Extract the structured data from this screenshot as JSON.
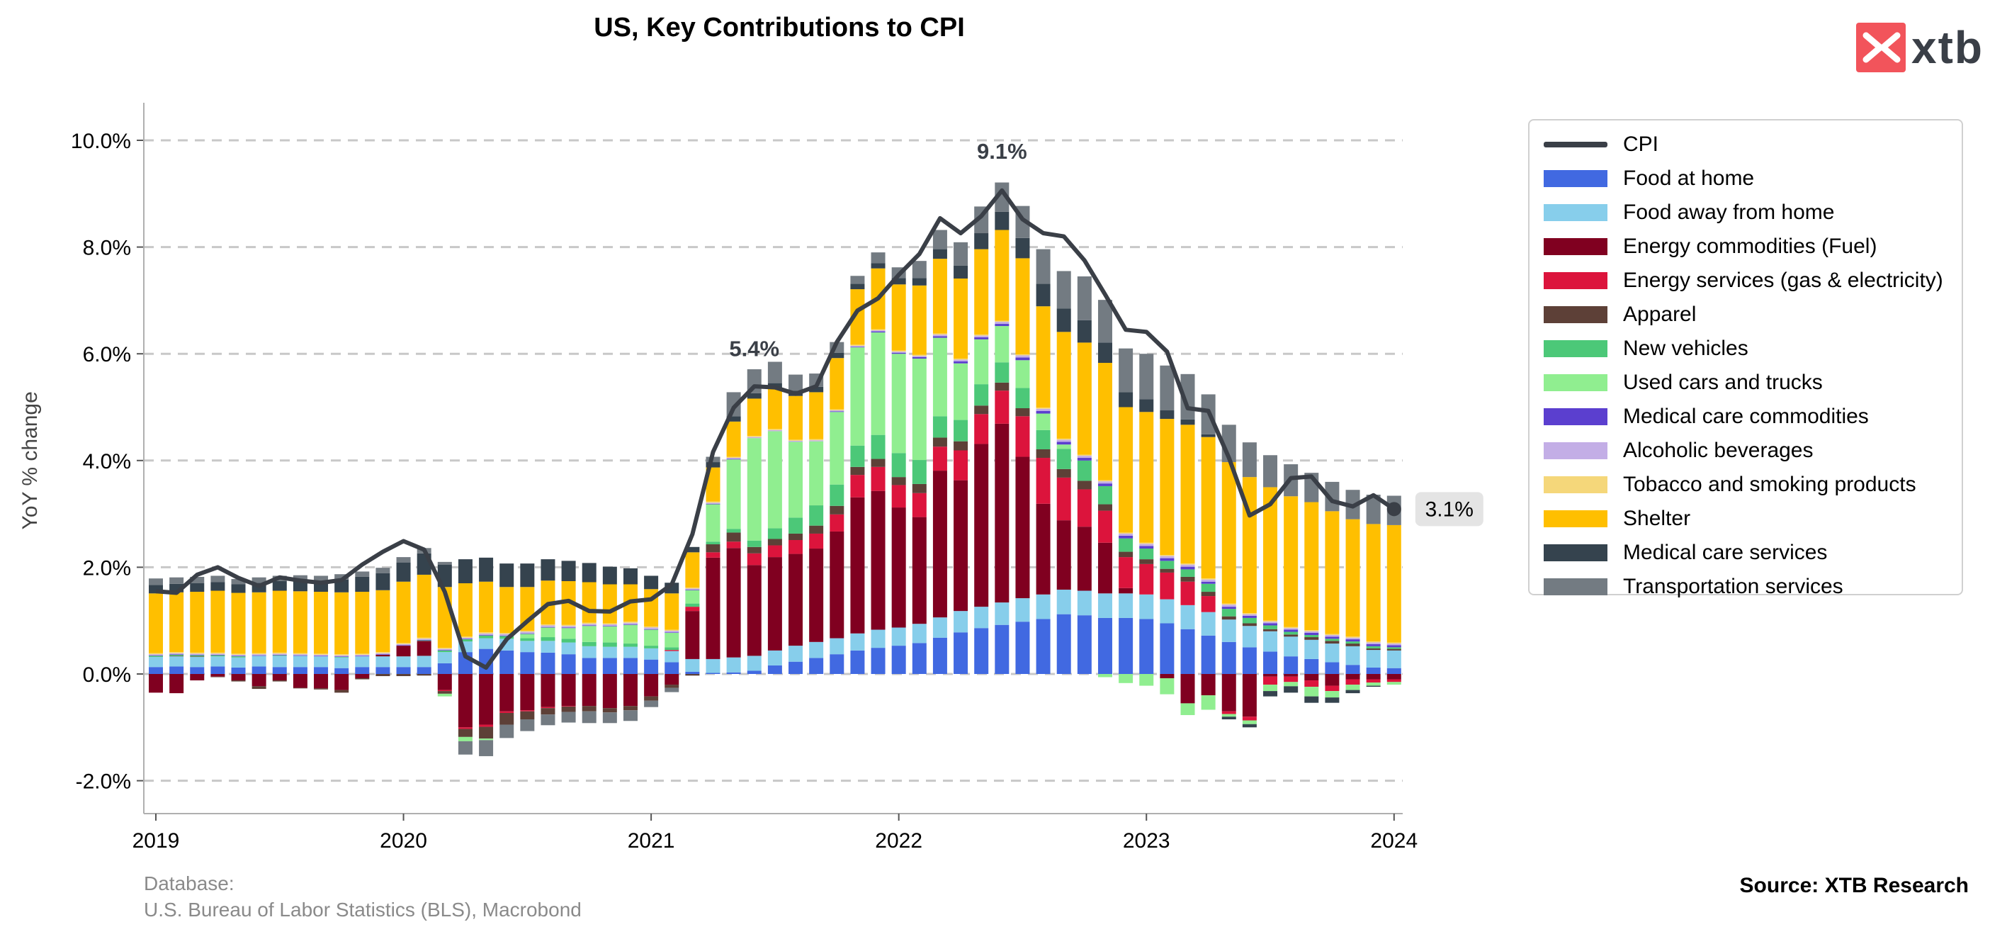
{
  "header": {
    "title": "US, Key Contributions to CPI"
  },
  "brand": {
    "name": "xtb",
    "accent": "#f2545b"
  },
  "footer": {
    "database_label": "Database:",
    "database_value": "U.S. Bureau of Labor Statistics (BLS), Macrobond",
    "source": "Source: XTB Research"
  },
  "chart_data": {
    "type": "bar",
    "stacked": true,
    "ylabel": "YoY % change",
    "ylim": [
      -2.6,
      10.8
    ],
    "yticks": [
      "-2.0%",
      "0.0%",
      "2.0%",
      "4.0%",
      "6.0%",
      "8.0%",
      "10.0%"
    ],
    "ytick_values": [
      -2,
      0,
      2,
      4,
      6,
      8,
      10
    ],
    "xticks": [
      "2019",
      "2020",
      "2021",
      "2022",
      "2023",
      "2024"
    ],
    "xtick_values": [
      0,
      12,
      24,
      36,
      48,
      60
    ],
    "grid": "horizontal dashed",
    "legend_position": "right",
    "annotations": [
      {
        "text": "5.4%",
        "x": 29,
        "y": 5.4
      },
      {
        "text": "9.1%",
        "x": 41,
        "y": 9.1
      }
    ],
    "end_label": "3.1%",
    "series": [
      {
        "name": "CPI",
        "kind": "line",
        "color": "#3a3f47",
        "values": [
          1.55,
          1.52,
          1.86,
          2.0,
          1.8,
          1.65,
          1.81,
          1.75,
          1.71,
          1.76,
          2.05,
          2.29,
          2.49,
          2.33,
          1.54,
          0.33,
          0.12,
          0.65,
          0.99,
          1.31,
          1.37,
          1.18,
          1.17,
          1.36,
          1.4,
          1.68,
          2.62,
          4.16,
          4.99,
          5.39,
          5.37,
          5.25,
          5.39,
          6.22,
          6.81,
          7.04,
          7.48,
          7.87,
          8.54,
          8.26,
          8.58,
          9.06,
          8.52,
          8.26,
          8.2,
          7.75,
          7.11,
          6.45,
          6.41,
          6.04,
          4.98,
          4.93,
          4.05,
          2.97,
          3.18,
          3.67,
          3.7,
          3.24,
          3.14,
          3.35,
          3.09
        ]
      },
      {
        "name": "Food at home",
        "kind": "bar",
        "color": "#4169e1",
        "values": [
          0.13,
          0.14,
          0.13,
          0.14,
          0.12,
          0.14,
          0.13,
          0.13,
          0.13,
          0.11,
          0.13,
          0.13,
          0.13,
          0.13,
          0.2,
          0.41,
          0.47,
          0.44,
          0.41,
          0.4,
          0.37,
          0.3,
          0.3,
          0.3,
          0.27,
          0.22,
          0.04,
          0.02,
          0.03,
          0.06,
          0.16,
          0.23,
          0.3,
          0.37,
          0.44,
          0.49,
          0.53,
          0.58,
          0.68,
          0.78,
          0.86,
          0.92,
          0.98,
          1.03,
          1.12,
          1.1,
          1.05,
          1.05,
          1.03,
          0.95,
          0.84,
          0.72,
          0.6,
          0.5,
          0.42,
          0.33,
          0.28,
          0.22,
          0.17,
          0.12,
          0.11
        ]
      },
      {
        "name": "Food away from home",
        "kind": "bar",
        "color": "#87ceeb",
        "values": [
          0.19,
          0.19,
          0.19,
          0.19,
          0.19,
          0.2,
          0.21,
          0.21,
          0.2,
          0.2,
          0.2,
          0.2,
          0.2,
          0.21,
          0.21,
          0.2,
          0.2,
          0.22,
          0.21,
          0.22,
          0.22,
          0.22,
          0.21,
          0.21,
          0.21,
          0.21,
          0.24,
          0.26,
          0.28,
          0.28,
          0.28,
          0.3,
          0.3,
          0.3,
          0.32,
          0.34,
          0.34,
          0.36,
          0.38,
          0.4,
          0.4,
          0.42,
          0.44,
          0.46,
          0.46,
          0.46,
          0.46,
          0.46,
          0.46,
          0.45,
          0.45,
          0.44,
          0.42,
          0.4,
          0.38,
          0.37,
          0.36,
          0.35,
          0.35,
          0.33,
          0.33
        ]
      },
      {
        "name": "Energy commodities (Fuel)",
        "kind": "bar",
        "color": "#800020",
        "values": [
          -0.35,
          -0.36,
          -0.12,
          -0.05,
          -0.12,
          -0.23,
          -0.12,
          -0.26,
          -0.27,
          -0.3,
          -0.08,
          0.03,
          0.2,
          0.28,
          -0.3,
          -1.0,
          -0.95,
          -0.7,
          -0.68,
          -0.62,
          -0.6,
          -0.6,
          -0.64,
          -0.6,
          -0.42,
          -0.2,
          0.9,
          1.9,
          2.05,
          1.7,
          1.75,
          1.72,
          1.75,
          2.0,
          2.55,
          2.6,
          2.25,
          2.0,
          2.75,
          2.45,
          3.05,
          3.35,
          2.65,
          1.7,
          1.3,
          1.2,
          0.95,
          0.1,
          0.0,
          -0.08,
          -0.55,
          -0.4,
          -0.7,
          -0.8,
          -0.05,
          -0.05,
          -0.12,
          -0.22,
          -0.1,
          -0.1,
          -0.1
        ]
      },
      {
        "name": "Energy services (gas & electricity)",
        "kind": "bar",
        "color": "#dc143c",
        "values": [
          0.0,
          0.0,
          0.0,
          0.0,
          0.0,
          0.0,
          0.0,
          0.0,
          0.0,
          0.0,
          0.0,
          0.0,
          0.0,
          0.0,
          -0.02,
          -0.03,
          -0.04,
          -0.03,
          -0.02,
          -0.02,
          -0.01,
          0.0,
          0.0,
          0.0,
          0.0,
          0.02,
          0.08,
          0.1,
          0.12,
          0.22,
          0.22,
          0.26,
          0.28,
          0.32,
          0.42,
          0.45,
          0.42,
          0.45,
          0.45,
          0.56,
          0.56,
          0.62,
          0.76,
          0.86,
          0.8,
          0.7,
          0.6,
          0.58,
          0.57,
          0.5,
          0.44,
          0.3,
          -0.05,
          -0.07,
          -0.15,
          -0.1,
          -0.12,
          -0.1,
          -0.1,
          -0.06,
          -0.05
        ]
      },
      {
        "name": "Apparel",
        "kind": "bar",
        "color": "#5d4037",
        "values": [
          0.0,
          0.01,
          0.01,
          -0.01,
          -0.02,
          -0.05,
          -0.02,
          -0.01,
          -0.02,
          -0.05,
          -0.02,
          -0.04,
          -0.04,
          -0.03,
          -0.05,
          -0.15,
          -0.22,
          -0.22,
          -0.15,
          -0.12,
          -0.1,
          -0.1,
          -0.08,
          -0.08,
          -0.08,
          -0.06,
          -0.03,
          0.15,
          0.17,
          0.12,
          0.12,
          0.12,
          0.15,
          0.16,
          0.15,
          0.15,
          0.15,
          0.17,
          0.17,
          0.17,
          0.16,
          0.15,
          0.15,
          0.16,
          0.16,
          0.16,
          0.12,
          0.1,
          0.09,
          0.07,
          0.09,
          0.08,
          0.06,
          0.05,
          0.04,
          0.04,
          0.05,
          0.05,
          0.05,
          0.03,
          0.03
        ]
      },
      {
        "name": "New vehicles",
        "kind": "bar",
        "color": "#4cc878",
        "values": [
          0.02,
          0.02,
          0.02,
          0.02,
          0.02,
          0.0,
          0.01,
          0.0,
          0.0,
          0.01,
          0.0,
          0.0,
          0.0,
          0.01,
          0.03,
          0.04,
          0.05,
          0.05,
          0.05,
          0.07,
          0.07,
          0.08,
          0.08,
          0.06,
          0.05,
          0.05,
          0.06,
          0.05,
          0.07,
          0.12,
          0.2,
          0.3,
          0.38,
          0.4,
          0.4,
          0.45,
          0.45,
          0.45,
          0.4,
          0.4,
          0.4,
          0.38,
          0.38,
          0.36,
          0.38,
          0.38,
          0.34,
          0.25,
          0.2,
          0.15,
          0.14,
          0.15,
          0.14,
          0.1,
          0.07,
          0.05,
          0.04,
          0.04,
          0.04,
          0.04,
          0.03
        ]
      },
      {
        "name": "Used cars and trucks",
        "kind": "bar",
        "color": "#90ee90",
        "values": [
          0.0,
          0.0,
          0.0,
          0.0,
          0.0,
          0.0,
          0.0,
          0.0,
          0.0,
          0.0,
          0.0,
          0.0,
          0.0,
          0.0,
          -0.05,
          -0.08,
          -0.03,
          0.0,
          0.08,
          0.18,
          0.2,
          0.3,
          0.3,
          0.35,
          0.3,
          0.27,
          0.25,
          0.7,
          1.3,
          1.92,
          1.82,
          1.42,
          1.2,
          1.36,
          1.84,
          1.92,
          1.86,
          1.9,
          1.47,
          1.06,
          0.84,
          0.68,
          0.52,
          0.31,
          0.08,
          0.0,
          -0.06,
          -0.17,
          -0.22,
          -0.3,
          -0.22,
          -0.27,
          -0.05,
          -0.07,
          -0.12,
          -0.08,
          -0.18,
          -0.12,
          -0.1,
          -0.06,
          -0.05
        ]
      },
      {
        "name": "Medical care commodities",
        "kind": "bar",
        "color": "#5b3fcf",
        "values": [
          0.01,
          0.01,
          0.01,
          0.01,
          0.01,
          0.01,
          0.01,
          0.01,
          0.01,
          0.01,
          0.01,
          0.01,
          0.01,
          0.01,
          0.01,
          0.01,
          0.01,
          0.01,
          0.01,
          0.01,
          0.01,
          0.01,
          0.01,
          0.01,
          0.01,
          0.01,
          0.01,
          0.01,
          0.01,
          0.0,
          0.0,
          0.0,
          0.0,
          0.01,
          0.01,
          0.02,
          0.02,
          0.03,
          0.03,
          0.04,
          0.04,
          0.04,
          0.05,
          0.05,
          0.05,
          0.05,
          0.05,
          0.05,
          0.05,
          0.05,
          0.05,
          0.04,
          0.04,
          0.04,
          0.04,
          0.04,
          0.04,
          0.04,
          0.04,
          0.04,
          0.04
        ]
      },
      {
        "name": "Alcoholic beverages",
        "kind": "bar",
        "color": "#c3aee6",
        "values": [
          0.02,
          0.02,
          0.02,
          0.02,
          0.02,
          0.02,
          0.02,
          0.02,
          0.02,
          0.02,
          0.02,
          0.02,
          0.02,
          0.02,
          0.02,
          0.02,
          0.03,
          0.03,
          0.03,
          0.03,
          0.03,
          0.03,
          0.03,
          0.03,
          0.03,
          0.03,
          0.02,
          0.02,
          0.02,
          0.02,
          0.02,
          0.02,
          0.02,
          0.02,
          0.02,
          0.02,
          0.02,
          0.02,
          0.03,
          0.03,
          0.03,
          0.04,
          0.04,
          0.04,
          0.04,
          0.04,
          0.04,
          0.04,
          0.04,
          0.04,
          0.04,
          0.04,
          0.04,
          0.03,
          0.03,
          0.03,
          0.03,
          0.03,
          0.03,
          0.03,
          0.03
        ]
      },
      {
        "name": "Tobacco and smoking products",
        "kind": "bar",
        "color": "#f5d77a",
        "values": [
          0.02,
          0.02,
          0.02,
          0.02,
          0.02,
          0.02,
          0.02,
          0.02,
          0.02,
          0.02,
          0.02,
          0.02,
          0.02,
          0.02,
          0.02,
          0.02,
          0.02,
          0.02,
          0.02,
          0.02,
          0.02,
          0.02,
          0.02,
          0.02,
          0.02,
          0.02,
          0.02,
          0.02,
          0.02,
          0.02,
          0.02,
          0.02,
          0.02,
          0.02,
          0.02,
          0.02,
          0.02,
          0.02,
          0.02,
          0.02,
          0.02,
          0.02,
          0.02,
          0.02,
          0.02,
          0.02,
          0.02,
          0.02,
          0.02,
          0.02,
          0.02,
          0.02,
          0.02,
          0.02,
          0.02,
          0.02,
          0.02,
          0.02,
          0.02,
          0.02,
          0.02
        ]
      },
      {
        "name": "Shelter",
        "kind": "bar",
        "color": "#ffbf00",
        "values": [
          1.12,
          1.12,
          1.14,
          1.16,
          1.14,
          1.14,
          1.16,
          1.16,
          1.16,
          1.16,
          1.16,
          1.16,
          1.15,
          1.18,
          1.14,
          1.0,
          0.95,
          0.86,
          0.82,
          0.82,
          0.82,
          0.76,
          0.73,
          0.7,
          0.7,
          0.68,
          0.66,
          0.64,
          0.66,
          0.7,
          0.76,
          0.82,
          0.88,
          0.96,
          1.04,
          1.14,
          1.24,
          1.3,
          1.4,
          1.5,
          1.6,
          1.7,
          1.8,
          1.9,
          2.0,
          2.1,
          2.2,
          2.35,
          2.45,
          2.55,
          2.6,
          2.65,
          2.65,
          2.55,
          2.5,
          2.45,
          2.4,
          2.3,
          2.2,
          2.2,
          2.2
        ]
      },
      {
        "name": "Medical care services",
        "kind": "bar",
        "color": "#35434e",
        "values": [
          0.16,
          0.16,
          0.16,
          0.16,
          0.16,
          0.18,
          0.18,
          0.2,
          0.2,
          0.24,
          0.28,
          0.32,
          0.36,
          0.4,
          0.42,
          0.45,
          0.45,
          0.44,
          0.44,
          0.4,
          0.38,
          0.36,
          0.33,
          0.3,
          0.25,
          0.2,
          0.1,
          0.1,
          0.1,
          0.1,
          0.1,
          0.1,
          0.1,
          0.1,
          0.1,
          0.1,
          0.12,
          0.14,
          0.18,
          0.24,
          0.3,
          0.34,
          0.38,
          0.42,
          0.44,
          0.42,
          0.38,
          0.28,
          0.24,
          0.16,
          0.1,
          0.05,
          -0.05,
          -0.06,
          -0.1,
          -0.12,
          -0.12,
          -0.1,
          -0.06,
          -0.02,
          0.0
        ]
      },
      {
        "name": "Transportation services",
        "kind": "bar",
        "color": "#737b82",
        "values": [
          0.12,
          0.12,
          0.12,
          0.12,
          0.1,
          0.1,
          0.1,
          0.1,
          0.1,
          0.1,
          0.1,
          0.1,
          0.1,
          0.1,
          0.05,
          -0.25,
          -0.3,
          -0.25,
          -0.22,
          -0.2,
          -0.2,
          -0.22,
          -0.2,
          -0.2,
          -0.12,
          -0.08,
          0.0,
          0.1,
          0.45,
          0.45,
          0.4,
          0.3,
          0.25,
          0.2,
          0.15,
          0.2,
          0.2,
          0.32,
          0.36,
          0.44,
          0.5,
          0.55,
          0.6,
          0.65,
          0.7,
          0.82,
          0.8,
          0.82,
          0.85,
          0.84,
          0.85,
          0.75,
          0.7,
          0.65,
          0.6,
          0.6,
          0.55,
          0.55,
          0.55,
          0.55,
          0.55
        ]
      }
    ]
  }
}
